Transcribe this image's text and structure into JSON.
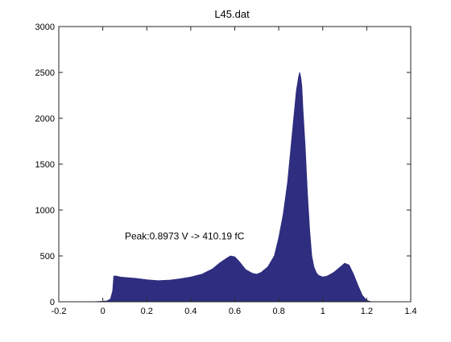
{
  "chart_data": {
    "type": "area",
    "title": "L45.dat",
    "xlabel": "",
    "ylabel": "",
    "xlim": [
      -0.2,
      1.4
    ],
    "ylim": [
      0,
      3000
    ],
    "xticks": [
      -0.2,
      0,
      0.2,
      0.4,
      0.6,
      0.8,
      1,
      1.2,
      1.4
    ],
    "xtick_labels": [
      "-0.2",
      "0",
      "0.2",
      "0.4",
      "0.6",
      "0.8",
      "1",
      "1.2",
      "1.4"
    ],
    "yticks": [
      0,
      500,
      1000,
      1500,
      2000,
      2500,
      3000
    ],
    "ytick_labels": [
      "0",
      "500",
      "1000",
      "1500",
      "2000",
      "2500",
      "3000"
    ],
    "grid": false,
    "box": true,
    "fill_color": "#2e2d7f",
    "annotation": {
      "text": "Peak:0.8973 V -> 410.19 fC",
      "x": 0.1,
      "y": 680
    },
    "series": [
      {
        "x": [
          -0.05,
          0.0,
          0.02,
          0.035,
          0.045,
          0.05,
          0.06,
          0.08,
          0.1,
          0.15,
          0.2,
          0.25,
          0.3,
          0.35,
          0.4,
          0.45,
          0.5,
          0.53,
          0.56,
          0.58,
          0.6,
          0.62,
          0.65,
          0.68,
          0.7,
          0.72,
          0.75,
          0.78,
          0.8,
          0.82,
          0.84,
          0.85,
          0.86,
          0.87,
          0.88,
          0.89,
          0.895,
          0.9,
          0.905,
          0.91,
          0.92,
          0.93,
          0.94,
          0.95,
          0.96,
          0.97,
          0.98,
          1.0,
          1.02,
          1.05,
          1.08,
          1.1,
          1.12,
          1.14,
          1.16,
          1.18,
          1.2,
          1.22
        ],
        "y": [
          0,
          5,
          10,
          30,
          120,
          280,
          280,
          270,
          265,
          255,
          240,
          230,
          235,
          250,
          270,
          300,
          360,
          420,
          470,
          500,
          490,
          440,
          350,
          310,
          300,
          320,
          380,
          500,
          700,
          950,
          1300,
          1550,
          1800,
          2050,
          2300,
          2450,
          2500,
          2450,
          2350,
          2100,
          1700,
          1200,
          800,
          500,
          380,
          320,
          290,
          270,
          280,
          320,
          380,
          420,
          400,
          300,
          180,
          70,
          15,
          0
        ]
      }
    ]
  }
}
